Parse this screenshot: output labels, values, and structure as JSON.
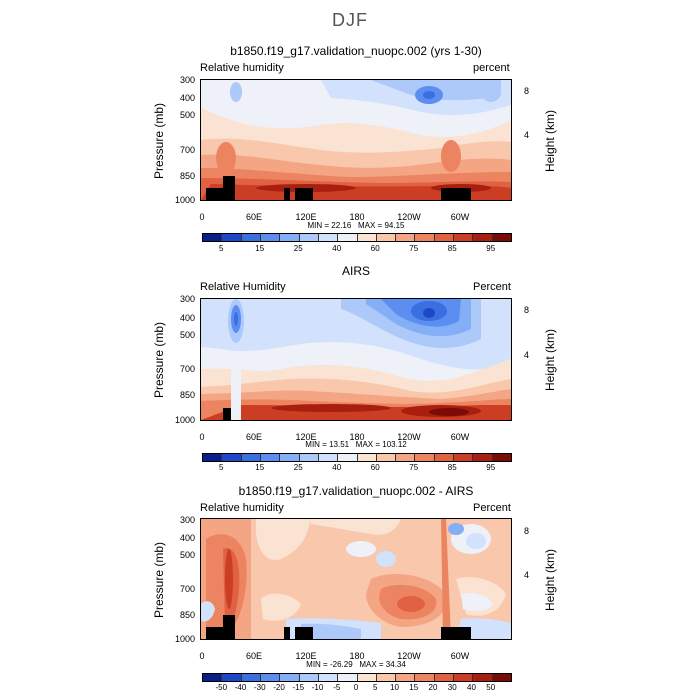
{
  "figure": {
    "season": "DJF"
  },
  "chart_data": [
    {
      "type": "heatmap",
      "title": "b1850.f19_g17.validation_nuopc.002 (yrs 1-30)",
      "left_label": "Relative humidity",
      "right_label": "percent",
      "ylabel": "Pressure (mb)",
      "y2label": "Height (km)",
      "y_ticks": [
        "300",
        "400",
        "500",
        "700",
        "850",
        "1000"
      ],
      "y2_ticks": [
        "8",
        "4"
      ],
      "x_ticks": [
        "0",
        "60E",
        "120E",
        "180",
        "120W",
        "60W"
      ],
      "min": "22.16",
      "max": "94.15",
      "min_label": "MIN =",
      "max_label": "MAX =",
      "colorbar_labels": [
        "5",
        "15",
        "25",
        "40",
        "60",
        "75",
        "85",
        "95"
      ]
    },
    {
      "type": "heatmap",
      "title": "AIRS",
      "left_label": "Relative Humidity",
      "right_label": "Percent",
      "ylabel": "Pressure (mb)",
      "y2label": "Height (km)",
      "y_ticks": [
        "300",
        "400",
        "500",
        "700",
        "850",
        "1000"
      ],
      "y2_ticks": [
        "8",
        "4"
      ],
      "x_ticks": [
        "0",
        "60E",
        "120E",
        "180",
        "120W",
        "60W"
      ],
      "min": "13.51",
      "max": "103.12",
      "min_label": "MIN =",
      "max_label": "MAX =",
      "colorbar_labels": [
        "5",
        "15",
        "25",
        "40",
        "60",
        "75",
        "85",
        "95"
      ]
    },
    {
      "type": "heatmap",
      "title": "b1850.f19_g17.validation_nuopc.002 - AIRS",
      "left_label": "Relative humidity",
      "right_label": "Percent",
      "ylabel": "Pressure (mb)",
      "y2label": "Height (km)",
      "y_ticks": [
        "300",
        "400",
        "500",
        "700",
        "850",
        "1000"
      ],
      "y2_ticks": [
        "8",
        "4"
      ],
      "x_ticks": [
        "0",
        "60E",
        "120E",
        "180",
        "120W",
        "60W"
      ],
      "min": "-26.29",
      "max": "34.34",
      "min_label": "MIN =",
      "max_label": "MAX =",
      "colorbar_labels": [
        "-50",
        "-40",
        "-30",
        "-20",
        "-15",
        "-10",
        "-5",
        "0",
        "5",
        "10",
        "15",
        "20",
        "30",
        "40",
        "50"
      ]
    }
  ],
  "palettes": {
    "sequential": [
      "#0a1e8c",
      "#1f48c8",
      "#3a6fe0",
      "#5b8ef0",
      "#84aef6",
      "#adc9fa",
      "#d3e2fc",
      "#eef1f8",
      "#fbe3d4",
      "#f8c7ac",
      "#f3a584",
      "#ec8462",
      "#e06242",
      "#cc3e23",
      "#a81f0f",
      "#7a0c05"
    ],
    "diverging": [
      "#0a1e8c",
      "#1f48c8",
      "#3a6fe0",
      "#5b8ef0",
      "#84aef6",
      "#adc9fa",
      "#d3e2fc",
      "#eef1f8",
      "#fbe3d4",
      "#f8c7ac",
      "#f3a584",
      "#ec8462",
      "#e06242",
      "#cc3e23",
      "#a81f0f",
      "#7a0c05"
    ]
  }
}
